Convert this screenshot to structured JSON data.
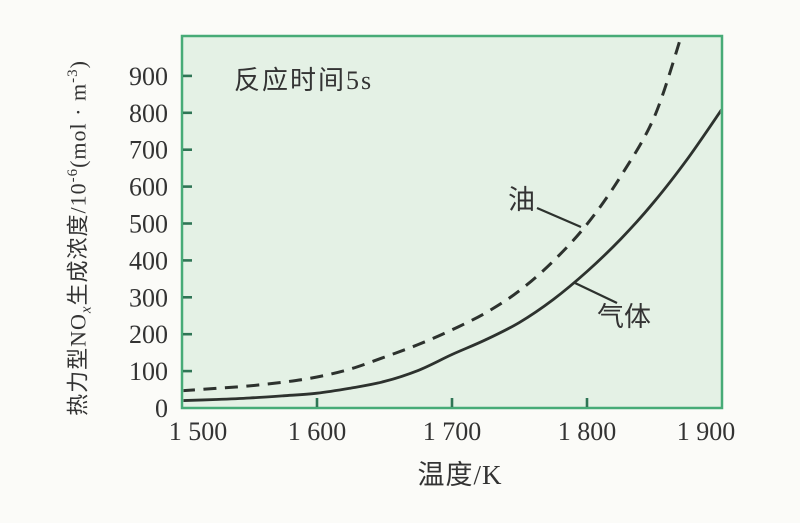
{
  "chart_data": {
    "type": "line",
    "title": "",
    "annotation": "反应时间5s",
    "xlabel": "温度/K",
    "ylabel": "热力型NOx生成浓度/10^-6(mol·m^-3)",
    "ylabel_parts": {
      "p1": "热力型NO",
      "sub_x": "x",
      "p2": "生成浓度/10",
      "sup_exp": "-6",
      "p3": "(mol · m",
      "sup_unit": "-3",
      "p4": ")"
    },
    "xlim": [
      1500,
      1900
    ],
    "ylim": [
      0,
      1000
    ],
    "grid": false,
    "legend_position": "inline-curve-labels",
    "x_ticks": [
      {
        "value": 1500,
        "label": "1 500"
      },
      {
        "value": 1600,
        "label": "1 600"
      },
      {
        "value": 1700,
        "label": "1 700"
      },
      {
        "value": 1800,
        "label": "1 800"
      },
      {
        "value": 1900,
        "label": "1 900"
      }
    ],
    "y_ticks": [
      {
        "value": 0,
        "label": "0"
      },
      {
        "value": 100,
        "label": "100"
      },
      {
        "value": 200,
        "label": "200"
      },
      {
        "value": 300,
        "label": "300"
      },
      {
        "value": 400,
        "label": "400"
      },
      {
        "value": 500,
        "label": "500"
      },
      {
        "value": 600,
        "label": "600"
      },
      {
        "value": 700,
        "label": "700"
      },
      {
        "value": 800,
        "label": "800"
      },
      {
        "value": 900,
        "label": "900"
      }
    ],
    "series": [
      {
        "name": "油",
        "line_style": "dashed",
        "x": [
          1500,
          1525,
          1550,
          1575,
          1600,
          1625,
          1650,
          1675,
          1700,
          1725,
          1750,
          1775,
          1800,
          1825,
          1850,
          1870
        ],
        "y": [
          47,
          53,
          60,
          70,
          84,
          106,
          138,
          172,
          212,
          258,
          318,
          398,
          498,
          628,
          790,
          1010
        ]
      },
      {
        "name": "气体",
        "line_style": "solid",
        "x": [
          1500,
          1525,
          1550,
          1575,
          1600,
          1625,
          1650,
          1675,
          1700,
          1725,
          1750,
          1775,
          1800,
          1825,
          1850,
          1875,
          1900
        ],
        "y": [
          20,
          23,
          27,
          33,
          40,
          54,
          72,
          102,
          145,
          185,
          232,
          294,
          370,
          458,
          560,
          678,
          810
        ]
      }
    ],
    "colors": {
      "page_bg": "#fbfbf8",
      "plot_bg": "#e4f1e5",
      "frame": "#47ab77",
      "tick": "#2f7555",
      "curve": "#2d322e",
      "text": "#333333"
    }
  }
}
